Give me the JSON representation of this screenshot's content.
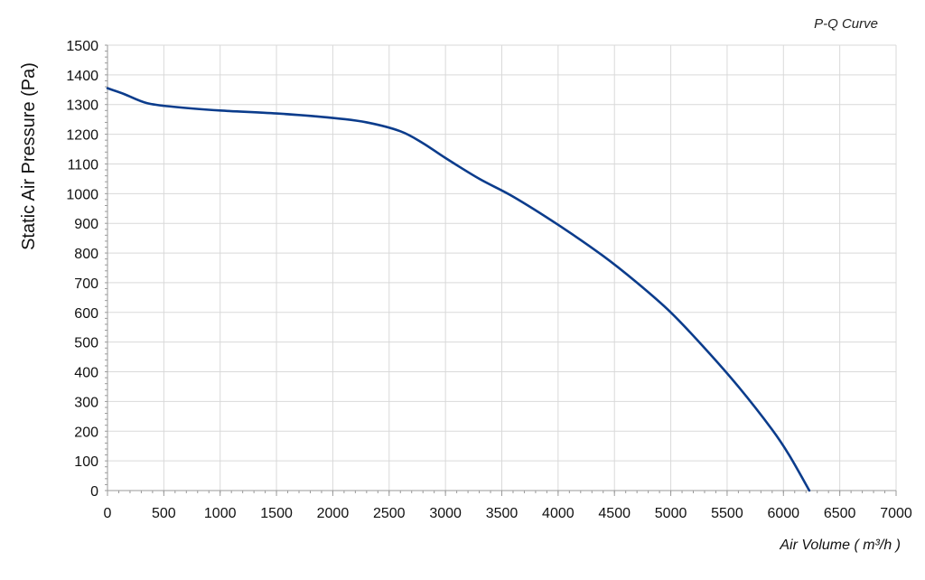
{
  "chart_data": {
    "type": "line",
    "title": "P-Q Curve",
    "xlabel": "Air Volume ( m³/h )",
    "ylabel": "Static Air Pressure  (Pa)",
    "xlim": [
      0,
      7000
    ],
    "ylim": [
      0,
      1500
    ],
    "x_ticks": [
      0,
      500,
      1000,
      1500,
      2000,
      2500,
      3000,
      3500,
      4000,
      4500,
      5000,
      5500,
      6000,
      6500,
      7000
    ],
    "y_ticks": [
      0,
      100,
      200,
      300,
      400,
      500,
      600,
      700,
      800,
      900,
      1000,
      1100,
      1200,
      1300,
      1400,
      1500
    ],
    "grid": true,
    "series": [
      {
        "color": "#0b3c8c",
        "points": [
          [
            0,
            1355
          ],
          [
            150,
            1335
          ],
          [
            350,
            1305
          ],
          [
            600,
            1292
          ],
          [
            1000,
            1280
          ],
          [
            1500,
            1270
          ],
          [
            2000,
            1255
          ],
          [
            2300,
            1240
          ],
          [
            2600,
            1210
          ],
          [
            2800,
            1170
          ],
          [
            3000,
            1120
          ],
          [
            3300,
            1050
          ],
          [
            3600,
            990
          ],
          [
            4000,
            895
          ],
          [
            4400,
            790
          ],
          [
            4700,
            700
          ],
          [
            5000,
            600
          ],
          [
            5300,
            480
          ],
          [
            5600,
            350
          ],
          [
            5900,
            205
          ],
          [
            6050,
            120
          ],
          [
            6230,
            0
          ]
        ]
      }
    ]
  }
}
